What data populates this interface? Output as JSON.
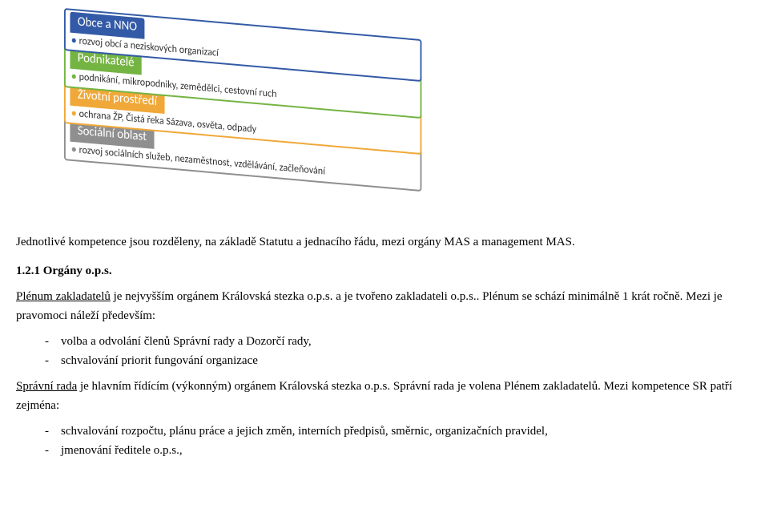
{
  "diagram": {
    "colors": {
      "blue": "#335aa6",
      "green": "#74b443",
      "orange": "#f0a838",
      "gray": "#8f8f8f"
    },
    "items": [
      {
        "title": "Obce a NNO",
        "desc": "rozvoj obcí a neziskových organizací",
        "theme": "blue"
      },
      {
        "title": "Podnikatelé",
        "desc": "podnikání, mikropodniky, zemědělci, cestovní ruch",
        "theme": "green"
      },
      {
        "title": "Životní prostředí",
        "desc": "ochrana ŽP, Čistá řeka Sázava, osvěta, odpady",
        "theme": "orange"
      },
      {
        "title": "Sociální oblast",
        "desc": "rozvoj sociálních služeb, nezaměstnost, vzdělávání, začleňování",
        "theme": "gray"
      }
    ]
  },
  "body": {
    "p1": "Jednotlivé kompetence jsou rozděleny, na základě Statutu a jednacího řádu, mezi orgány MAS a management MAS.",
    "sec_num": "1.2.1 Orgány o.p.s.",
    "plenum_label": "Plénum zakladatelů",
    "plenum_rest": " je nejvyšším orgánem Královská stezka o.p.s. a je tvořeno zakladateli o.p.s.. Plénum se schází minimálně 1 krát ročně. Mezi je pravomoci náleží především:",
    "plenum_items": [
      "volba a odvolání členů Správní rady a Dozorčí rady,",
      "schvalování priorit fungování organizace"
    ],
    "rada_label": "Správní rada",
    "rada_rest": " je hlavním řídícím (výkonným) orgánem Královská stezka o.p.s. Správní rada je volena Plénem zakladatelů. Mezi kompetence SR patří zejména:",
    "rada_items": [
      "schvalování rozpočtu, plánu práce a jejich změn, interních předpisů, směrnic, organizačních pravidel,",
      "jmenování ředitele o.p.s.,"
    ]
  },
  "typography": {
    "body_fontsize": 15,
    "diagram_title_fontsize": 16,
    "diagram_desc_fontsize": 13
  }
}
